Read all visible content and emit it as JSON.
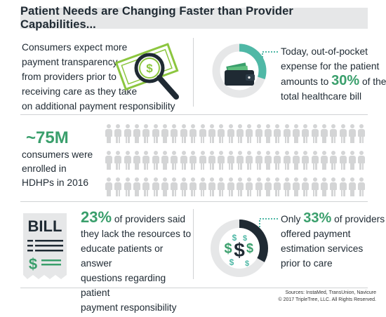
{
  "title": "Patient Needs are Changing Faster than Provider Capabilities...",
  "panel_transparency": {
    "text_lines": [
      "Consumers expect more",
      "payment transparency",
      "from providers prior to",
      "receiving care as they take",
      "on additional payment responsibility"
    ],
    "icon": "money-magnifier-icon"
  },
  "panel_out_of_pocket": {
    "line1": "Today, out-of-pocket",
    "line2": "expense for the patient",
    "line3_prefix": "amounts to ",
    "stat": "30%",
    "line3_suffix": " of the",
    "line4": "total healthcare bill",
    "donut_fraction": 0.3,
    "icon": "wallet-icon"
  },
  "panel_hdhp": {
    "stat": "~75M",
    "lines": [
      "consumers were",
      "enrolled in",
      "HDHPs in 2016"
    ],
    "icon": "people-icon"
  },
  "panel_providers_resources": {
    "stat": "23%",
    "line1_suffix": " of providers said",
    "lines": [
      "they lack the resources to",
      "educate patients or answer",
      "questions regarding patient",
      "payment responsibility"
    ],
    "bill_label": "BILL",
    "icon": "bill-icon"
  },
  "panel_estimation": {
    "prefix": "Only ",
    "stat": "33%",
    "suffix": " of providers",
    "lines": [
      "offered payment",
      "estimation services",
      "prior to care"
    ],
    "donut_fraction": 0.33,
    "icon": "dollar-signs-icon"
  },
  "sources": {
    "line1": "Sources: InstaMed, TransUnion, Navicure",
    "line2": "© 2017 TripleTree, LLC. All Rights Reserved."
  },
  "colors": {
    "accent_green": "#3a9f6c",
    "dark_navy": "#1f2a33",
    "gray": "#d4d5d6",
    "teal": "#4fb8a6"
  }
}
